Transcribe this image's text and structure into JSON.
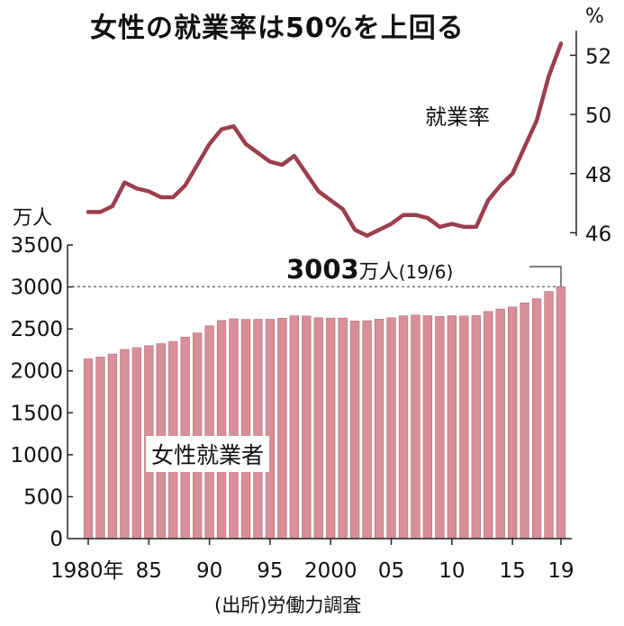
{
  "title": "女性の就業率は50%を上回る",
  "source": "(出所)労働力調査",
  "chart_data": [
    {
      "type": "bar",
      "series_label": "女性就業者",
      "unit": "万人",
      "yticks": [
        0,
        500,
        1000,
        1500,
        2000,
        2500,
        3000,
        3500
      ],
      "ylim": [
        0,
        3500
      ],
      "x_tick_labels": [
        "1980年",
        "85",
        "90",
        "95",
        "2000",
        "05",
        "10",
        "15",
        "19"
      ],
      "x": [
        1980,
        1981,
        1982,
        1983,
        1984,
        1985,
        1986,
        1987,
        1988,
        1989,
        1990,
        1991,
        1992,
        1993,
        1994,
        1995,
        1996,
        1997,
        1998,
        1999,
        2000,
        2001,
        2002,
        2003,
        2004,
        2005,
        2006,
        2007,
        2008,
        2009,
        2010,
        2011,
        2012,
        2013,
        2014,
        2015,
        2016,
        2017,
        2018,
        2019
      ],
      "values": [
        2142,
        2164,
        2200,
        2255,
        2276,
        2300,
        2324,
        2350,
        2402,
        2451,
        2536,
        2600,
        2620,
        2613,
        2614,
        2614,
        2627,
        2656,
        2653,
        2632,
        2629,
        2629,
        2594,
        2597,
        2616,
        2633,
        2655,
        2665,
        2656,
        2649,
        2656,
        2654,
        2658,
        2707,
        2737,
        2761,
        2810,
        2859,
        2946,
        3003
      ],
      "annotation": {
        "value": "3003",
        "unit": "万人",
        "period": "(19/6)"
      },
      "color": "#d88f98"
    },
    {
      "type": "line",
      "series_label": "就業率",
      "unit": "%",
      "yticks": [
        46,
        48,
        50,
        52
      ],
      "ylim": [
        45.8,
        52.5
      ],
      "x": [
        1980,
        1981,
        1982,
        1983,
        1984,
        1985,
        1986,
        1987,
        1988,
        1989,
        1990,
        1991,
        1992,
        1993,
        1994,
        1995,
        1996,
        1997,
        1998,
        1999,
        2000,
        2001,
        2002,
        2003,
        2004,
        2005,
        2006,
        2007,
        2008,
        2009,
        2010,
        2011,
        2012,
        2013,
        2014,
        2015,
        2016,
        2017,
        2018,
        2019
      ],
      "values": [
        46.7,
        46.7,
        46.9,
        47.7,
        47.5,
        47.4,
        47.2,
        47.2,
        47.6,
        48.3,
        49.0,
        49.5,
        49.6,
        49.0,
        48.7,
        48.4,
        48.3,
        48.6,
        48.0,
        47.4,
        47.1,
        46.8,
        46.1,
        45.9,
        46.1,
        46.3,
        46.6,
        46.6,
        46.5,
        46.2,
        46.3,
        46.2,
        46.2,
        47.1,
        47.6,
        48.0,
        48.9,
        49.8,
        51.3,
        52.4
      ],
      "color": "#9b3f4f"
    }
  ]
}
